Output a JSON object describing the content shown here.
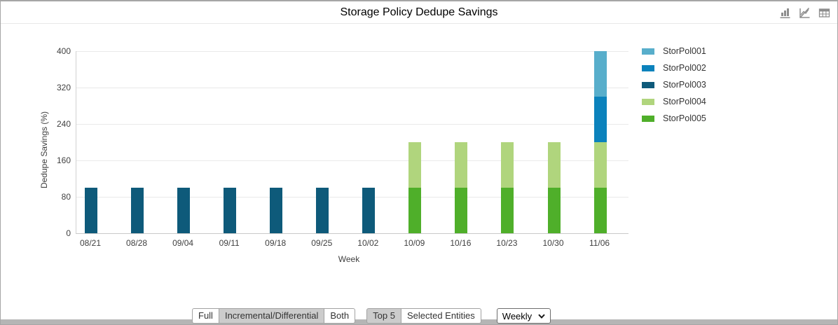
{
  "header": {
    "title": "Storage Policy Dedupe Savings",
    "icons": [
      {
        "name": "bar-chart-view-icon"
      },
      {
        "name": "hide-chart-icon"
      },
      {
        "name": "table-view-icon"
      }
    ]
  },
  "chart_data": {
    "type": "bar",
    "stacked": true,
    "title": "Storage Policy Dedupe Savings",
    "xlabel": "Week",
    "ylabel": "Dedupe Savings  (%)",
    "ylim": [
      0,
      400
    ],
    "yticks": [
      0,
      80,
      160,
      240,
      320,
      400
    ],
    "grid": true,
    "legend_position": "right",
    "categories": [
      "08/21",
      "08/28",
      "09/04",
      "09/11",
      "09/18",
      "09/25",
      "10/02",
      "10/09",
      "10/16",
      "10/23",
      "10/30",
      "11/06"
    ],
    "series": [
      {
        "name": "StorPol001",
        "color": "#58aecb",
        "values": [
          0,
          0,
          0,
          0,
          0,
          0,
          0,
          0,
          0,
          0,
          0,
          100
        ]
      },
      {
        "name": "StorPol002",
        "color": "#0b82bc",
        "values": [
          0,
          0,
          0,
          0,
          0,
          0,
          0,
          0,
          0,
          0,
          0,
          100
        ]
      },
      {
        "name": "StorPol003",
        "color": "#0e5a7a",
        "values": [
          100,
          100,
          100,
          100,
          100,
          100,
          100,
          0,
          0,
          0,
          0,
          0
        ]
      },
      {
        "name": "StorPol004",
        "color": "#b0d57d",
        "values": [
          0,
          0,
          0,
          0,
          0,
          0,
          0,
          100,
          100,
          100,
          100,
          100
        ]
      },
      {
        "name": "StorPol005",
        "color": "#4faf2a",
        "values": [
          0,
          0,
          0,
          0,
          0,
          0,
          0,
          100,
          100,
          100,
          100,
          100
        ]
      }
    ],
    "stack_order": [
      "StorPol005",
      "StorPol004",
      "StorPol003",
      "StorPol002",
      "StorPol001"
    ]
  },
  "controls": {
    "backup_type_group": [
      {
        "label": "Full",
        "active": false
      },
      {
        "label": "Incremental/Differential",
        "active": true
      },
      {
        "label": "Both",
        "active": false
      }
    ],
    "entity_group": [
      {
        "label": "Top 5",
        "active": true
      },
      {
        "label": "Selected Entities",
        "active": false
      }
    ],
    "interval_select": {
      "value": "Weekly"
    }
  }
}
